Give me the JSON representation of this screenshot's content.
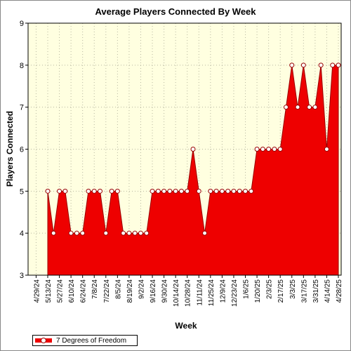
{
  "chart_data": {
    "type": "area",
    "title": "Average Players Connected By Week",
    "xlabel": "Week",
    "ylabel": "Players Connected",
    "ylim": [
      3,
      9
    ],
    "yticks": [
      "3",
      "4",
      "5",
      "6",
      "7",
      "8",
      "9"
    ],
    "xtick_labels": [
      "4/29/24",
      "5/13/24",
      "5/27/24",
      "6/10/24",
      "6/24/24",
      "7/8/24",
      "7/22/24",
      "8/5/24",
      "8/19/24",
      "9/2/24",
      "9/16/24",
      "9/30/24",
      "10/14/24",
      "10/28/24",
      "11/11/24",
      "11/25/24",
      "12/9/24",
      "12/23/24",
      "1/6/25",
      "1/20/25",
      "2/3/25",
      "2/17/25",
      "3/3/25",
      "3/17/25",
      "3/31/25",
      "4/14/25",
      "4/28/25"
    ],
    "grid": true,
    "legend_position": "bottom-left",
    "colors": {
      "fill": "#ee0000",
      "marker_edge": "#990000",
      "plot_background": "#ffffe0"
    },
    "series": [
      {
        "name": "7 Degrees of Freedom",
        "x": [
          "5/13/24",
          "5/20/24",
          "5/27/24",
          "6/3/24",
          "6/10/24",
          "6/17/24",
          "6/24/24",
          "7/1/24",
          "7/8/24",
          "7/15/24",
          "7/22/24",
          "7/29/24",
          "8/5/24",
          "8/12/24",
          "8/19/24",
          "8/26/24",
          "9/2/24",
          "9/9/24",
          "9/16/24",
          "9/23/24",
          "9/30/24",
          "10/7/24",
          "10/14/24",
          "10/21/24",
          "10/28/24",
          "11/4/24",
          "11/11/24",
          "11/18/24",
          "11/25/24",
          "12/2/24",
          "12/9/24",
          "12/16/24",
          "12/23/24",
          "12/30/24",
          "1/6/25",
          "1/13/25",
          "1/20/25",
          "1/27/25",
          "2/3/25",
          "2/10/25",
          "2/17/25",
          "2/24/25",
          "3/3/25",
          "3/10/25",
          "3/17/25",
          "3/24/25",
          "3/31/25",
          "4/7/25",
          "4/14/25",
          "4/21/25",
          "4/28/25"
        ],
        "y": [
          5,
          4,
          5,
          5,
          4,
          4,
          4,
          5,
          5,
          5,
          4,
          5,
          5,
          4,
          4,
          4,
          4,
          4,
          5,
          5,
          5,
          5,
          5,
          5,
          5,
          6,
          5,
          4,
          5,
          5,
          5,
          5,
          5,
          5,
          5,
          5,
          6,
          6,
          6,
          6,
          6,
          7,
          8,
          7,
          8,
          7,
          7,
          8,
          6,
          8,
          8
        ]
      }
    ]
  }
}
